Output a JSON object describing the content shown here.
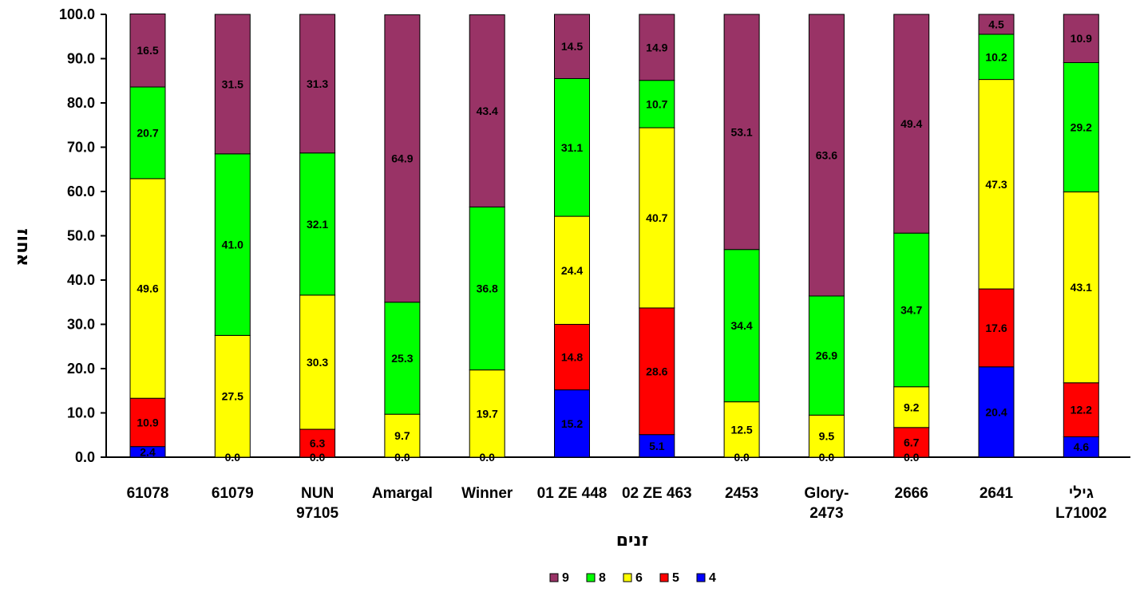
{
  "chart_data": {
    "type": "bar",
    "stacked": true,
    "title": "",
    "xlabel": "זנים",
    "ylabel": "אחוז",
    "ylim": [
      0,
      100
    ],
    "y_ticks": [
      "0.0",
      "10.0",
      "20.0",
      "30.0",
      "40.0",
      "50.0",
      "60.0",
      "70.0",
      "80.0",
      "90.0",
      "100.0"
    ],
    "grid": false,
    "legend_position": "bottom",
    "categories": [
      [
        "61078"
      ],
      [
        "61079"
      ],
      [
        "NUN",
        "97105"
      ],
      [
        "Amargal"
      ],
      [
        "Winner"
      ],
      [
        "01 ZE 448"
      ],
      [
        "02 ZE 463"
      ],
      [
        "2453"
      ],
      [
        "Glory-",
        "2473"
      ],
      [
        "2666"
      ],
      [
        "2641"
      ],
      [
        "גילי",
        "L71002"
      ]
    ],
    "series": [
      {
        "name": "4",
        "color": "#0000FF",
        "values": [
          2.4,
          0.0,
          0.0,
          0.0,
          0.0,
          15.2,
          5.1,
          0.0,
          0.0,
          0.0,
          20.4,
          4.6
        ]
      },
      {
        "name": "5",
        "color": "#FF0000",
        "values": [
          10.9,
          null,
          6.3,
          null,
          null,
          14.8,
          28.6,
          null,
          null,
          6.7,
          17.6,
          12.2
        ]
      },
      {
        "name": "6",
        "color": "#FFFF00",
        "values": [
          49.6,
          27.5,
          30.3,
          9.7,
          19.7,
          24.4,
          40.7,
          12.5,
          9.5,
          9.2,
          47.3,
          43.1
        ]
      },
      {
        "name": "8",
        "color": "#00FF00",
        "values": [
          20.7,
          41.0,
          32.1,
          25.3,
          36.8,
          31.1,
          10.7,
          34.4,
          26.9,
          34.7,
          10.2,
          29.2
        ]
      },
      {
        "name": "9",
        "color": "#993366",
        "values": [
          16.5,
          31.5,
          31.3,
          64.9,
          43.4,
          14.5,
          14.9,
          53.1,
          63.6,
          49.4,
          4.5,
          10.9
        ]
      }
    ],
    "legend_order": [
      "9",
      "8",
      "6",
      "5",
      "4"
    ]
  }
}
